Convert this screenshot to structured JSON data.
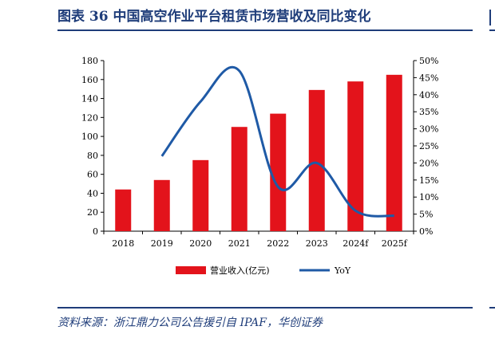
{
  "title": "图表 36   中国高空作业平台租赁市场营收及同比变化",
  "source": "资料来源：浙江鼎力公司公告援引自 IPAF，华创证券",
  "colors": {
    "bar": "#e3131b",
    "line": "#1f5aa6",
    "accent": "#1f3d7a"
  },
  "chart_data": {
    "type": "bar",
    "categories": [
      "2018",
      "2019",
      "2020",
      "2021",
      "2022",
      "2023",
      "2024f",
      "2025f"
    ],
    "series": [
      {
        "name": "营业收入(亿元)",
        "type": "bar",
        "axis": "left",
        "values": [
          44,
          54,
          75,
          110,
          124,
          149,
          158,
          165
        ]
      },
      {
        "name": "YoY",
        "type": "line",
        "axis": "right",
        "values": [
          null,
          22,
          38,
          47,
          13,
          20,
          6,
          4.5
        ]
      }
    ],
    "ylim": [
      0,
      180
    ],
    "yticks": [
      0,
      20,
      40,
      60,
      80,
      100,
      120,
      140,
      160,
      180
    ],
    "y2lim": [
      0,
      50
    ],
    "y2ticks": [
      "0%",
      "5%",
      "10%",
      "15%",
      "20%",
      "25%",
      "30%",
      "35%",
      "40%",
      "45%",
      "50%"
    ],
    "legend_position": "bottom",
    "grid": false
  }
}
